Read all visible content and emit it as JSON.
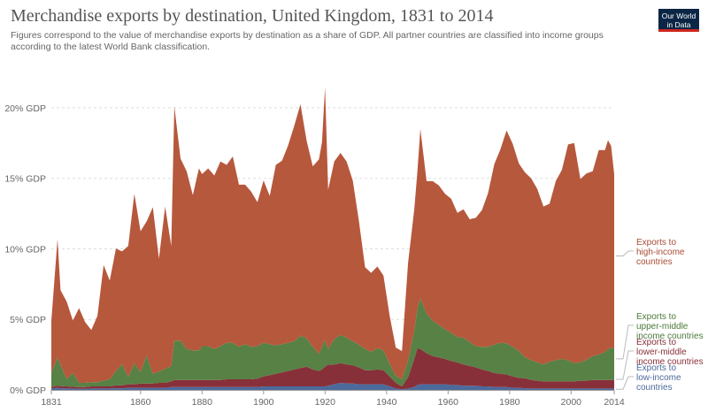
{
  "header": {
    "title": "Merchandise exports by destination, United Kingdom, 1831 to 2014",
    "subtitle": "Figures correspond to the value of merchandise exports by destination as a share of GDP. All partner countries are classified into income groups according to the latest World Bank classification.",
    "logo_line1": "Our World",
    "logo_line2": "in Data"
  },
  "chart_data": {
    "type": "area",
    "stacked": true,
    "xlim": [
      1831,
      2014
    ],
    "ylim": [
      0,
      21.5
    ],
    "x_ticks": [
      1831,
      1860,
      1880,
      1900,
      1920,
      1940,
      1960,
      1980,
      2000,
      2014
    ],
    "y_ticks": [
      {
        "value": 0,
        "label": "0% GDP"
      },
      {
        "value": 5,
        "label": "5% GDP"
      },
      {
        "value": 10,
        "label": "10% GDP"
      },
      {
        "value": 15,
        "label": "15% GDP"
      },
      {
        "value": 20,
        "label": "20% GDP"
      }
    ],
    "grid": "horizontal dotted",
    "legend_placement": "right, labels beside the series",
    "x": [
      1831,
      1833,
      1834,
      1836,
      1838,
      1840,
      1842,
      1844,
      1846,
      1848,
      1850,
      1852,
      1854,
      1856,
      1858,
      1860,
      1862,
      1864,
      1866,
      1868,
      1870,
      1871,
      1873,
      1875,
      1877,
      1879,
      1880,
      1882,
      1884,
      1886,
      1888,
      1890,
      1892,
      1894,
      1896,
      1898,
      1900,
      1902,
      1904,
      1906,
      1908,
      1910,
      1912,
      1914,
      1916,
      1918,
      1919,
      1920,
      1921,
      1923,
      1925,
      1927,
      1929,
      1931,
      1933,
      1935,
      1937,
      1939,
      1941,
      1943,
      1945,
      1947,
      1949,
      1950,
      1951,
      1953,
      1955,
      1957,
      1959,
      1961,
      1963,
      1965,
      1967,
      1969,
      1971,
      1973,
      1975,
      1977,
      1979,
      1981,
      1983,
      1985,
      1987,
      1989,
      1991,
      1993,
      1995,
      1997,
      1999,
      2001,
      2003,
      2005,
      2007,
      2009,
      2011,
      2012,
      2013,
      2014
    ],
    "series": [
      {
        "name": "Exports to low-income countries",
        "color": "#4c6a9c",
        "values": [
          0.1,
          0.15,
          0.12,
          0.1,
          0.1,
          0.08,
          0.08,
          0.1,
          0.1,
          0.1,
          0.1,
          0.12,
          0.12,
          0.15,
          0.15,
          0.15,
          0.15,
          0.15,
          0.15,
          0.15,
          0.2,
          0.2,
          0.2,
          0.2,
          0.2,
          0.2,
          0.2,
          0.2,
          0.2,
          0.2,
          0.2,
          0.2,
          0.2,
          0.2,
          0.2,
          0.2,
          0.25,
          0.25,
          0.25,
          0.25,
          0.25,
          0.25,
          0.25,
          0.25,
          0.25,
          0.25,
          0.25,
          0.25,
          0.3,
          0.4,
          0.5,
          0.45,
          0.45,
          0.4,
          0.4,
          0.4,
          0.4,
          0.4,
          0.25,
          0.1,
          0.05,
          0.1,
          0.2,
          0.35,
          0.4,
          0.4,
          0.4,
          0.4,
          0.4,
          0.35,
          0.35,
          0.3,
          0.3,
          0.3,
          0.25,
          0.25,
          0.2,
          0.2,
          0.2,
          0.15,
          0.15,
          0.12,
          0.1,
          0.1,
          0.1,
          0.1,
          0.1,
          0.1,
          0.1,
          0.1,
          0.1,
          0.1,
          0.1,
          0.1,
          0.1,
          0.1,
          0.1,
          0.1
        ]
      },
      {
        "name": "Exports to lower-middle income countries",
        "color": "#883039",
        "values": [
          0.1,
          0.15,
          0.15,
          0.15,
          0.12,
          0.12,
          0.12,
          0.15,
          0.15,
          0.15,
          0.15,
          0.2,
          0.2,
          0.25,
          0.25,
          0.3,
          0.3,
          0.3,
          0.35,
          0.35,
          0.4,
          0.5,
          0.5,
          0.5,
          0.5,
          0.5,
          0.5,
          0.5,
          0.5,
          0.5,
          0.55,
          0.55,
          0.55,
          0.55,
          0.55,
          0.6,
          0.7,
          0.8,
          0.9,
          1.0,
          1.1,
          1.2,
          1.3,
          1.4,
          1.2,
          1.1,
          1.2,
          1.4,
          1.5,
          1.4,
          1.4,
          1.35,
          1.3,
          1.2,
          1.0,
          1.0,
          1.05,
          1.0,
          0.7,
          0.4,
          0.2,
          0.8,
          2.0,
          2.6,
          2.5,
          2.2,
          2.0,
          1.9,
          1.8,
          1.7,
          1.6,
          1.5,
          1.4,
          1.3,
          1.2,
          1.1,
          1.0,
          0.95,
          0.9,
          0.8,
          0.7,
          0.7,
          0.6,
          0.55,
          0.5,
          0.5,
          0.5,
          0.5,
          0.5,
          0.5,
          0.55,
          0.55,
          0.6,
          0.6,
          0.6,
          0.6,
          0.6,
          0.6
        ]
      },
      {
        "name": "Exports to upper-middle income countries",
        "color": "#578145",
        "values": [
          1.0,
          2.0,
          1.5,
          0.5,
          1.0,
          0.3,
          0.3,
          0.3,
          0.3,
          0.4,
          0.5,
          1.0,
          1.5,
          0.5,
          1.5,
          0.8,
          2.0,
          0.7,
          0.8,
          1.0,
          1.1,
          2.8,
          2.8,
          2.2,
          2.1,
          2.1,
          2.4,
          2.4,
          2.2,
          2.4,
          2.6,
          2.6,
          2.3,
          2.5,
          2.3,
          2.3,
          2.4,
          2.2,
          2.0,
          2.0,
          2.0,
          2.0,
          2.3,
          2.0,
          1.6,
          1.2,
          1.6,
          1.9,
          1.1,
          1.8,
          2.0,
          1.9,
          1.7,
          1.6,
          1.5,
          1.3,
          1.5,
          1.4,
          0.9,
          0.5,
          0.5,
          1.2,
          2.0,
          2.8,
          3.6,
          2.8,
          2.5,
          2.3,
          2.1,
          2.0,
          1.8,
          1.9,
          1.7,
          1.5,
          1.6,
          1.7,
          2.0,
          2.2,
          2.2,
          2.1,
          1.9,
          1.5,
          1.4,
          1.3,
          1.2,
          1.4,
          1.5,
          1.6,
          1.5,
          1.3,
          1.3,
          1.5,
          1.7,
          1.8,
          2.0,
          2.2,
          2.3,
          2.2
        ]
      },
      {
        "name": "Exports to high-income countries",
        "color": "#b6583c",
        "values": [
          3.7,
          8.4,
          5.3,
          5.5,
          3.7,
          5.3,
          4.3,
          3.7,
          4.7,
          8.2,
          7.0,
          8.7,
          8.0,
          9.3,
          12.0,
          10.0,
          9.5,
          11.8,
          8.0,
          11.5,
          8.5,
          16.6,
          12.9,
          12.6,
          11.0,
          12.9,
          12.2,
          12.6,
          12.3,
          13.1,
          12.6,
          13.2,
          11.5,
          11.3,
          11.0,
          10.2,
          11.5,
          10.5,
          12.8,
          13.0,
          14.0,
          15.3,
          16.4,
          14.0,
          12.8,
          13.8,
          14.5,
          17.9,
          11.3,
          12.6,
          12.9,
          12.5,
          11.4,
          8.8,
          5.8,
          5.6,
          5.8,
          5.3,
          3.4,
          2.0,
          2.0,
          6.9,
          8.6,
          9.7,
          12.0,
          9.4,
          9.9,
          9.9,
          9.6,
          9.5,
          8.8,
          9.1,
          8.7,
          9.1,
          9.7,
          10.9,
          12.8,
          13.7,
          15.1,
          14.4,
          13.3,
          13.1,
          12.9,
          12.3,
          11.2,
          11.2,
          12.7,
          13.4,
          15.3,
          15.6,
          13.0,
          13.2,
          13.1,
          14.5,
          14.3,
          14.8,
          14.3,
          12.4
        ]
      }
    ],
    "legend": [
      {
        "lines": [
          "Exports to",
          "high-income",
          "countries"
        ],
        "color": "#a84c34",
        "anchor_value": 9.5
      },
      {
        "lines": [
          "Exports to",
          "upper-middle",
          "income countries"
        ],
        "color": "#4a7a3a",
        "anchor_value": 2.2
      },
      {
        "lines": [
          "Exports to",
          "lower-middle",
          "income countries"
        ],
        "color": "#883039",
        "anchor_value": 0.75
      },
      {
        "lines": [
          "Exports to",
          "low-income",
          "countries"
        ],
        "color": "#4c6a9c",
        "anchor_value": 0.05
      }
    ]
  }
}
